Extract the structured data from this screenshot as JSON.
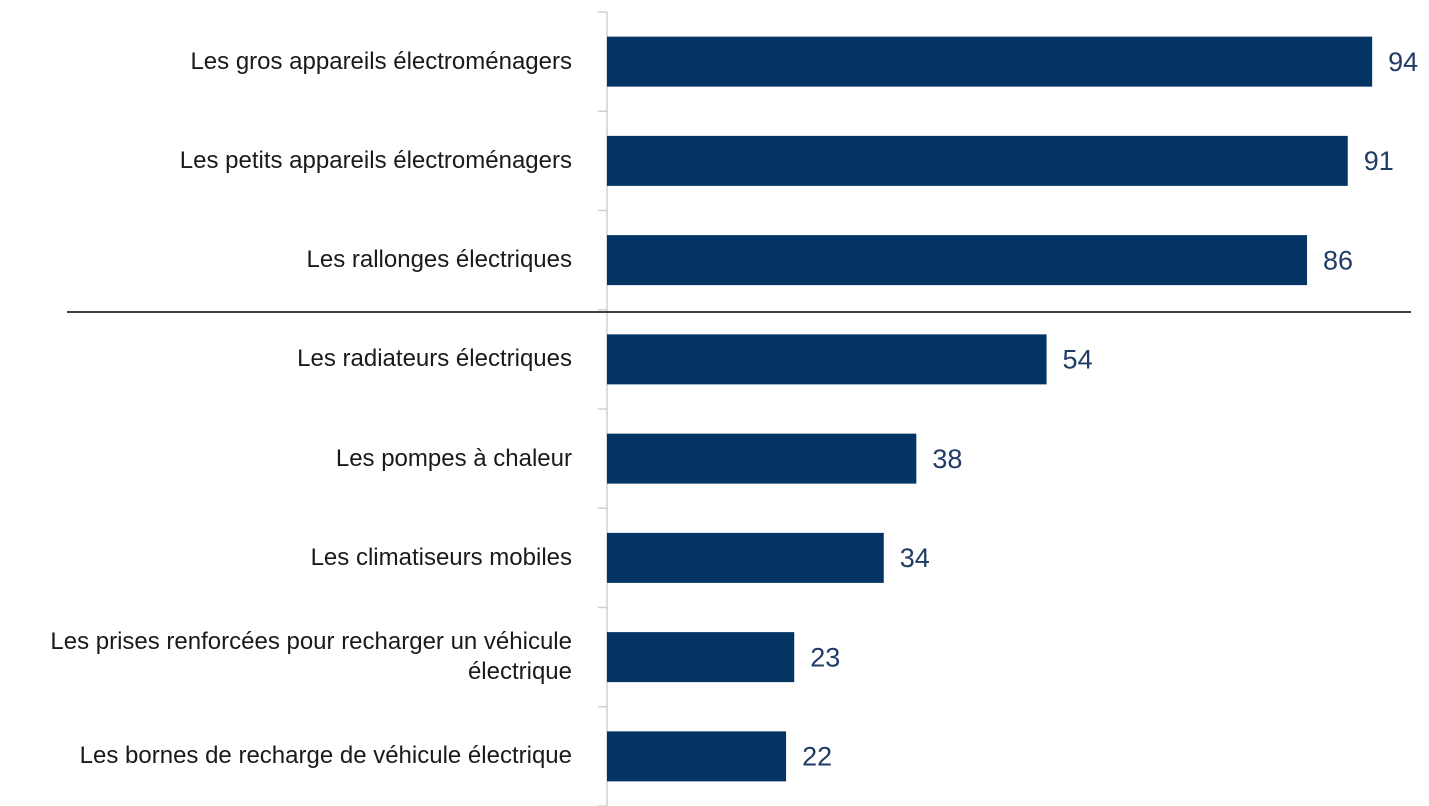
{
  "chart_data": {
    "type": "bar",
    "orientation": "horizontal",
    "categories": [
      "Les gros appareils électroménagers",
      "Les petits appareils électroménagers",
      "Les rallonges électriques",
      "Les radiateurs électriques",
      "Les pompes à chaleur",
      "Les climatiseurs mobiles",
      "Les prises renforcées pour recharger un véhicule électrique",
      "Les bornes de recharge de véhicule électrique"
    ],
    "values": [
      94,
      91,
      86,
      54,
      38,
      34,
      23,
      22
    ],
    "color": "#043464",
    "label_color": "#1f3b66",
    "xlim": [
      0,
      100
    ]
  }
}
